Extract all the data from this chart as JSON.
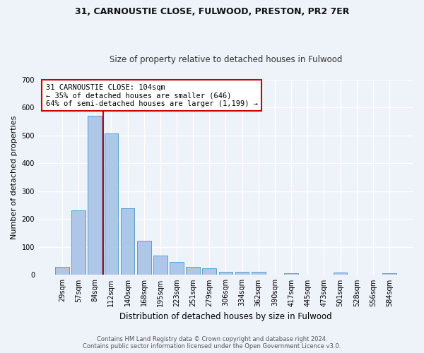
{
  "title_line1": "31, CARNOUSTIE CLOSE, FULWOOD, PRESTON, PR2 7ER",
  "title_line2": "Size of property relative to detached houses in Fulwood",
  "xlabel": "Distribution of detached houses by size in Fulwood",
  "ylabel": "Number of detached properties",
  "bar_labels": [
    "29sqm",
    "57sqm",
    "84sqm",
    "112sqm",
    "140sqm",
    "168sqm",
    "195sqm",
    "223sqm",
    "251sqm",
    "279sqm",
    "306sqm",
    "334sqm",
    "362sqm",
    "390sqm",
    "417sqm",
    "445sqm",
    "473sqm",
    "501sqm",
    "528sqm",
    "556sqm",
    "584sqm"
  ],
  "bar_values": [
    28,
    232,
    572,
    508,
    240,
    123,
    70,
    46,
    28,
    24,
    12,
    10,
    12,
    0,
    6,
    0,
    0,
    8,
    0,
    0,
    7
  ],
  "bar_color": "#aec6e8",
  "bar_edge_color": "#5a9fd4",
  "vline_color": "#cc0000",
  "annotation_text": "31 CARNOUSTIE CLOSE: 104sqm\n← 35% of detached houses are smaller (646)\n64% of semi-detached houses are larger (1,199) →",
  "annotation_box_color": "#ffffff",
  "annotation_box_edge": "#cc0000",
  "ylim": [
    0,
    700
  ],
  "yticks": [
    0,
    100,
    200,
    300,
    400,
    500,
    600,
    700
  ],
  "background_color": "#eef2f9",
  "grid_color": "#ffffff",
  "footer_line1": "Contains HM Land Registry data © Crown copyright and database right 2024.",
  "footer_line2": "Contains public sector information licensed under the Open Government Licence v3.0."
}
